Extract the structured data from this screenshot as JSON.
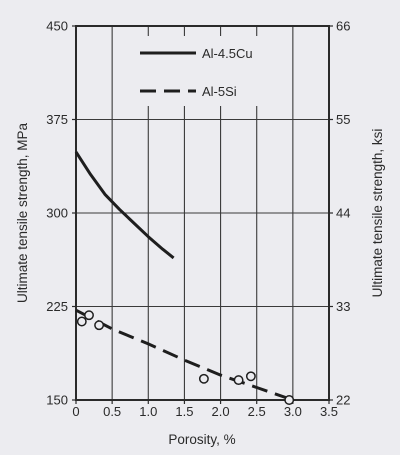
{
  "chart_data": {
    "type": "line",
    "xlabel": "Porosity, %",
    "ylabel": "Ultimate tensile strength, MPa",
    "ylabel_right": "Ultimate tensile strength, ksi",
    "xlim": [
      0,
      3.5
    ],
    "ylim": [
      150,
      450
    ],
    "ylim_right": [
      22,
      66
    ],
    "x_ticks": [
      "0",
      "0.5",
      "1.0",
      "1.5",
      "2.0",
      "2.5",
      "3.0",
      "3.5"
    ],
    "y_ticks": [
      "150",
      "225",
      "300",
      "375",
      "450"
    ],
    "y_ticks_right": [
      "22",
      "33",
      "44",
      "55",
      "66"
    ],
    "grid": true,
    "legend_position": "top-center",
    "series": [
      {
        "name": "Al-4.5Cu",
        "style": "solid",
        "curve": {
          "x": [
            0.0,
            0.2,
            0.4,
            0.6,
            0.8,
            1.0,
            1.2,
            1.35
          ],
          "y": [
            349,
            331,
            315,
            303,
            292,
            281,
            271,
            264
          ]
        }
      },
      {
        "name": "Al-5Si",
        "style": "dashed",
        "curve": {
          "x": [
            0.0,
            0.5,
            1.0,
            1.5,
            2.0,
            2.5,
            3.0
          ],
          "y": [
            222,
            207,
            195,
            182,
            170,
            160,
            150
          ]
        },
        "points": {
          "x": [
            0.08,
            0.18,
            0.32,
            1.77,
            2.25,
            2.42,
            2.95
          ],
          "y": [
            213,
            218,
            210,
            167,
            166,
            169,
            150
          ]
        }
      }
    ]
  }
}
